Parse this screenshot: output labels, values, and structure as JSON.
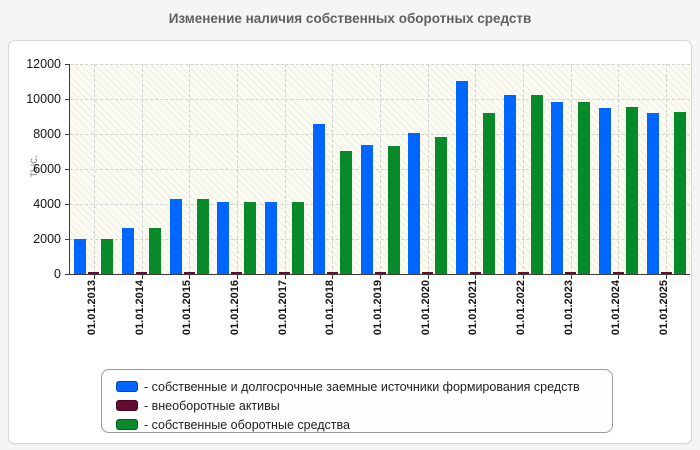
{
  "page": {
    "title": "Изменение наличия собственных оборотных средств"
  },
  "chart_data": {
    "type": "bar",
    "title": "Изменение наличия собственных оборотных средств",
    "xlabel": "",
    "ylabel": "тыс.",
    "ylim": [
      0,
      12000
    ],
    "yticks": [
      0,
      2000,
      4000,
      6000,
      8000,
      10000,
      12000
    ],
    "grid": true,
    "background_hatch": true,
    "legend_position": "bottom",
    "categories": [
      "01.01.2013",
      "01.01.2014",
      "01.01.2015",
      "01.01.2016",
      "01.01.2017",
      "01.01.2018",
      "01.01.2019",
      "01.01.2020",
      "01.01.2021",
      "01.01.2022",
      "01.01.2023",
      "01.01.2024",
      "01.01.2025"
    ],
    "series": [
      {
        "name": "собственные и долгосрочные заемные источники формирования средств",
        "color": "#0066ff",
        "values": [
          2000,
          2600,
          4300,
          4100,
          4100,
          8550,
          7350,
          8050,
          11000,
          10200,
          9850,
          9500,
          9200
        ]
      },
      {
        "name": "внеоборотные активы",
        "color": "#650a31",
        "values": [
          100,
          100,
          100,
          100,
          100,
          100,
          100,
          100,
          100,
          100,
          100,
          100,
          100
        ]
      },
      {
        "name": "собственные оборотные средства",
        "color": "#088a2b",
        "values": [
          2000,
          2600,
          4300,
          4100,
          4100,
          7000,
          7300,
          7850,
          9200,
          10250,
          9850,
          9550,
          9250
        ]
      }
    ],
    "legend": [
      {
        "color": "#0066ff",
        "label": "- собственные и долгосрочные заемные источники формирования средств"
      },
      {
        "color": "#650a31",
        "label": "- внеоборотные активы"
      },
      {
        "color": "#088a2b",
        "label": "- собственные оборотные средства"
      }
    ]
  }
}
